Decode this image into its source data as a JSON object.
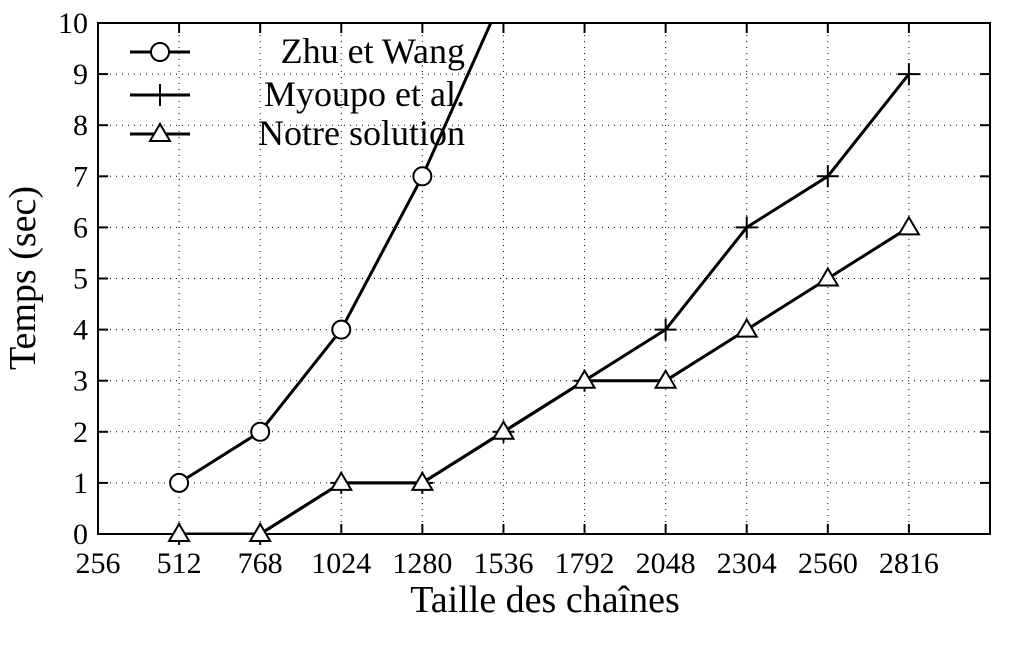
{
  "chart_data": {
    "type": "line",
    "title": "",
    "xlabel": "Taille des chaînes",
    "ylabel": "Temps (sec)",
    "x_ticks": [
      "256",
      "512",
      "768",
      "1024",
      "1280",
      "1536",
      "1792",
      "2048",
      "2304",
      "2560",
      "2816"
    ],
    "y_ticks": [
      "0",
      "1",
      "2",
      "3",
      "4",
      "5",
      "6",
      "7",
      "8",
      "9",
      "10"
    ],
    "xlim": [
      256,
      3072
    ],
    "ylim": [
      0,
      10
    ],
    "grid": true,
    "legend_position": "top-left",
    "series": [
      {
        "name": "Zhu et Wang",
        "marker": "circle",
        "x": [
          512,
          768,
          1024,
          1280
        ],
        "y": [
          1,
          2,
          4,
          7
        ],
        "continues_to": [
          1496,
          10
        ]
      },
      {
        "name": "Myoupo et al.",
        "marker": "plus",
        "x": [
          512,
          768,
          1024,
          1280,
          1536,
          1792,
          2048,
          2304,
          2560,
          2816
        ],
        "y": [
          0,
          0,
          1,
          1,
          2,
          3,
          4,
          6,
          7,
          9
        ]
      },
      {
        "name": "Notre solution",
        "marker": "triangle",
        "x": [
          512,
          768,
          1024,
          1280,
          1536,
          1792,
          2048,
          2304,
          2560,
          2816
        ],
        "y": [
          0,
          0,
          1,
          1,
          2,
          3,
          3,
          4,
          5,
          6
        ]
      }
    ]
  }
}
